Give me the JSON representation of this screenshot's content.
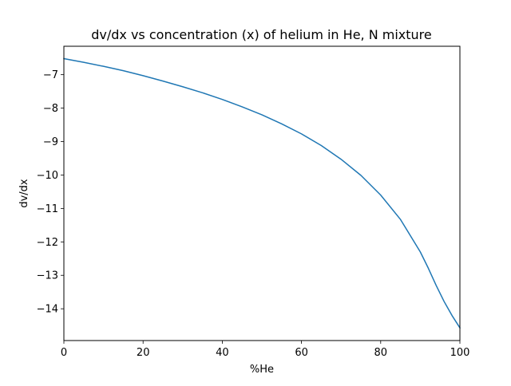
{
  "chart_data": {
    "type": "line",
    "title": "dv/dx vs concentration (x) of helium in He, N mixture",
    "xlabel": "%He",
    "ylabel": "dv/dx",
    "xlim": [
      0,
      100
    ],
    "ylim": [
      -14.95,
      -6.15
    ],
    "xticks": [
      0,
      20,
      40,
      60,
      80,
      100
    ],
    "xtick_labels": [
      "0",
      "20",
      "40",
      "60",
      "80",
      "100"
    ],
    "yticks": [
      -7,
      -8,
      -9,
      -10,
      -11,
      -12,
      -13,
      -14
    ],
    "ytick_labels": [
      "−7",
      "−8",
      "−9",
      "−10",
      "−11",
      "−12",
      "−13",
      "−14"
    ],
    "grid": false,
    "line_color": "#1f77b4",
    "series": [
      {
        "x": [
          0,
          5,
          10,
          15,
          20,
          25,
          30,
          35,
          40,
          45,
          50,
          55,
          60,
          65,
          70,
          75,
          80,
          85,
          90,
          92,
          94,
          96,
          98,
          100
        ],
        "y": [
          -6.52,
          -6.63,
          -6.75,
          -6.88,
          -7.03,
          -7.19,
          -7.36,
          -7.54,
          -7.74,
          -7.96,
          -8.2,
          -8.47,
          -8.77,
          -9.12,
          -9.53,
          -10.01,
          -10.6,
          -11.33,
          -12.3,
          -12.78,
          -13.3,
          -13.78,
          -14.2,
          -14.57
        ]
      }
    ]
  }
}
